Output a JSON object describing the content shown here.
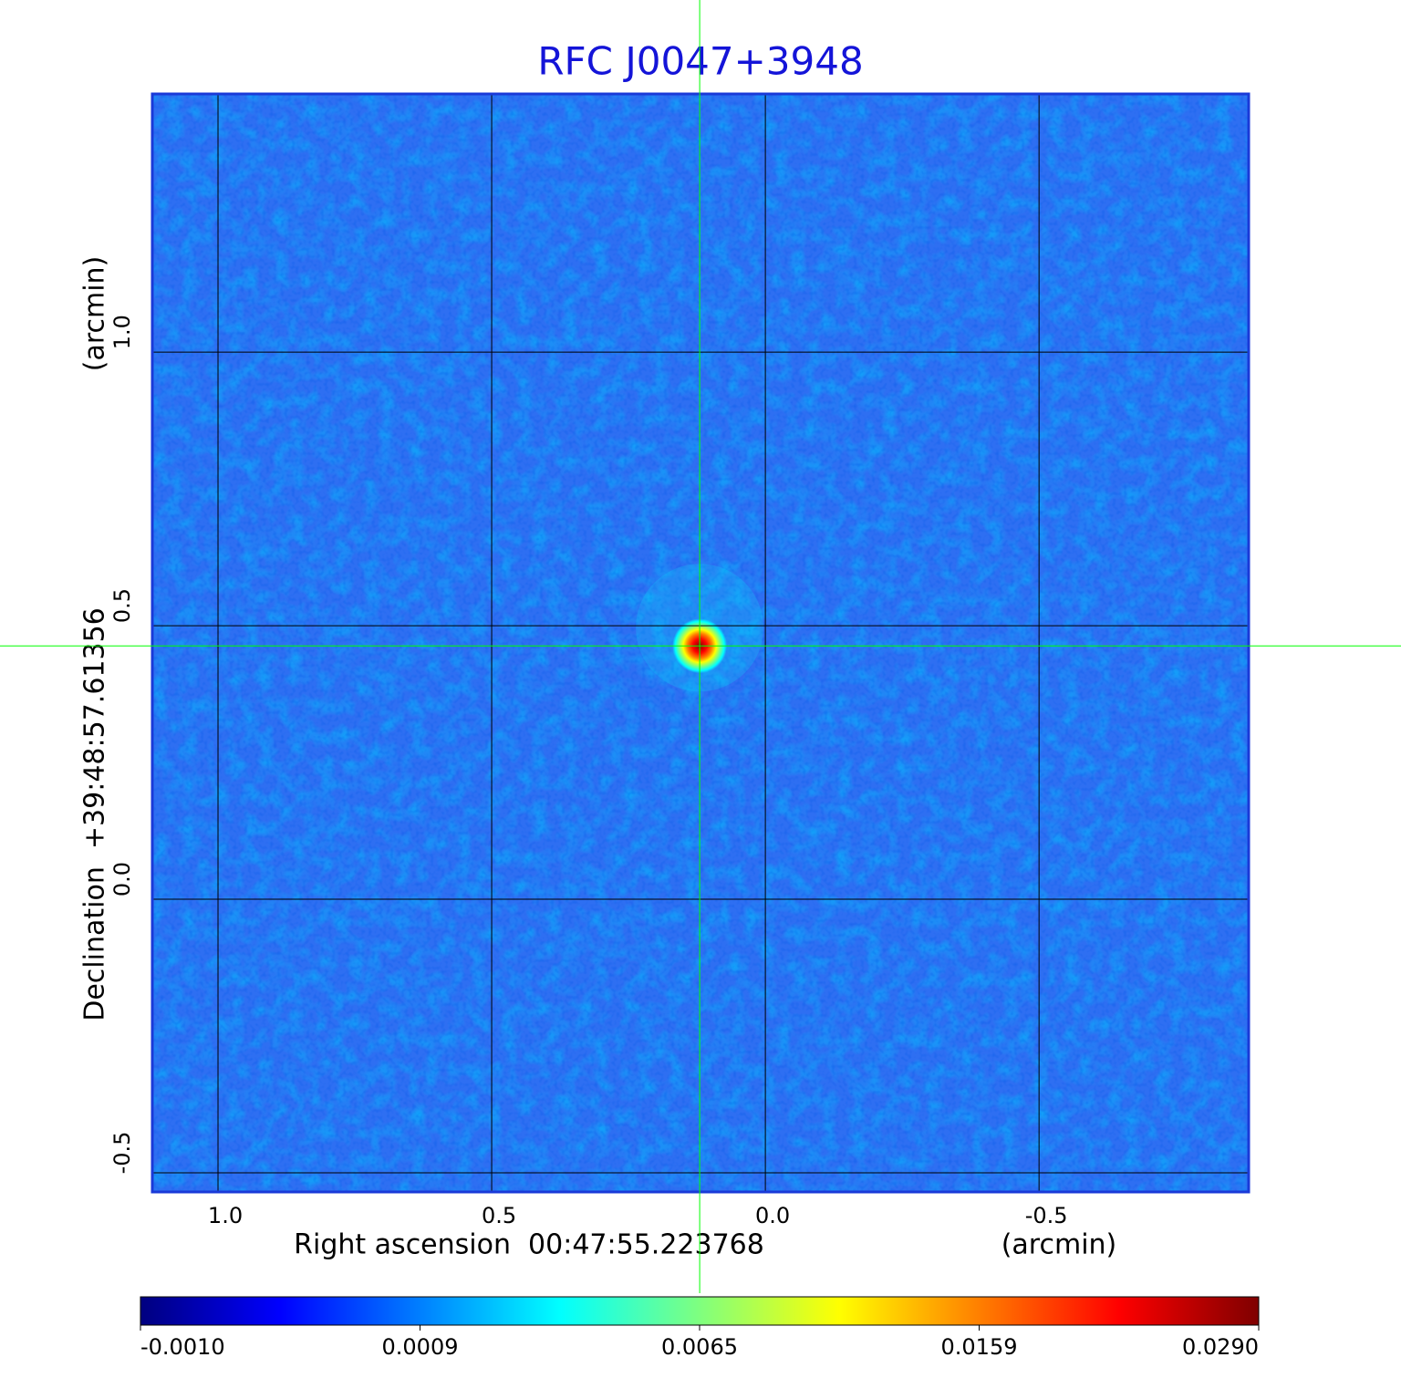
{
  "chart_data": {
    "type": "image",
    "title": "RFC J0047+3948",
    "title_color": "#1414d8",
    "x_label": "Right ascension  00:47:55.223768",
    "x_unit": "(arcmin)",
    "y_label": "Declination  +39:48:57.61356",
    "y_unit": "(arcmin)",
    "xlim": [
      1.12,
      -0.883
    ],
    "ylim": [
      -0.535,
      1.472
    ],
    "xticks": [
      {
        "value": 1.0,
        "label": "1.0"
      },
      0.5,
      {
        "value": 0.0,
        "label": "0.0"
      },
      -0.5
    ],
    "yticks": [
      -0.5,
      {
        "value": 0.0,
        "label": "0.0"
      },
      0.5,
      {
        "value": 1.0,
        "label": "1.0"
      }
    ],
    "grid": true,
    "background_color": "#2e6ff2",
    "crosshair": {
      "x": 0.12,
      "y": 0.463,
      "color": "#00ff00"
    },
    "source": {
      "x": 0.12,
      "y": 0.463,
      "peak": 0.029
    },
    "colorbar": {
      "clim": [
        -0.001,
        0.029
      ],
      "colormap": [
        "#00007f",
        "#0000ff",
        "#007fff",
        "#00ffff",
        "#7fff7f",
        "#ffff00",
        "#ff7f00",
        "#ff0000",
        "#7f0000"
      ],
      "ticks": [
        {
          "value": -0.001,
          "label": "-0.0010"
        },
        {
          "value": 0.0009,
          "label": "0.0009"
        },
        {
          "value": 0.0065,
          "label": "0.0065"
        },
        {
          "value": 0.0159,
          "label": "0.0159"
        },
        {
          "value": 0.029,
          "label": "0.0290"
        }
      ]
    }
  }
}
